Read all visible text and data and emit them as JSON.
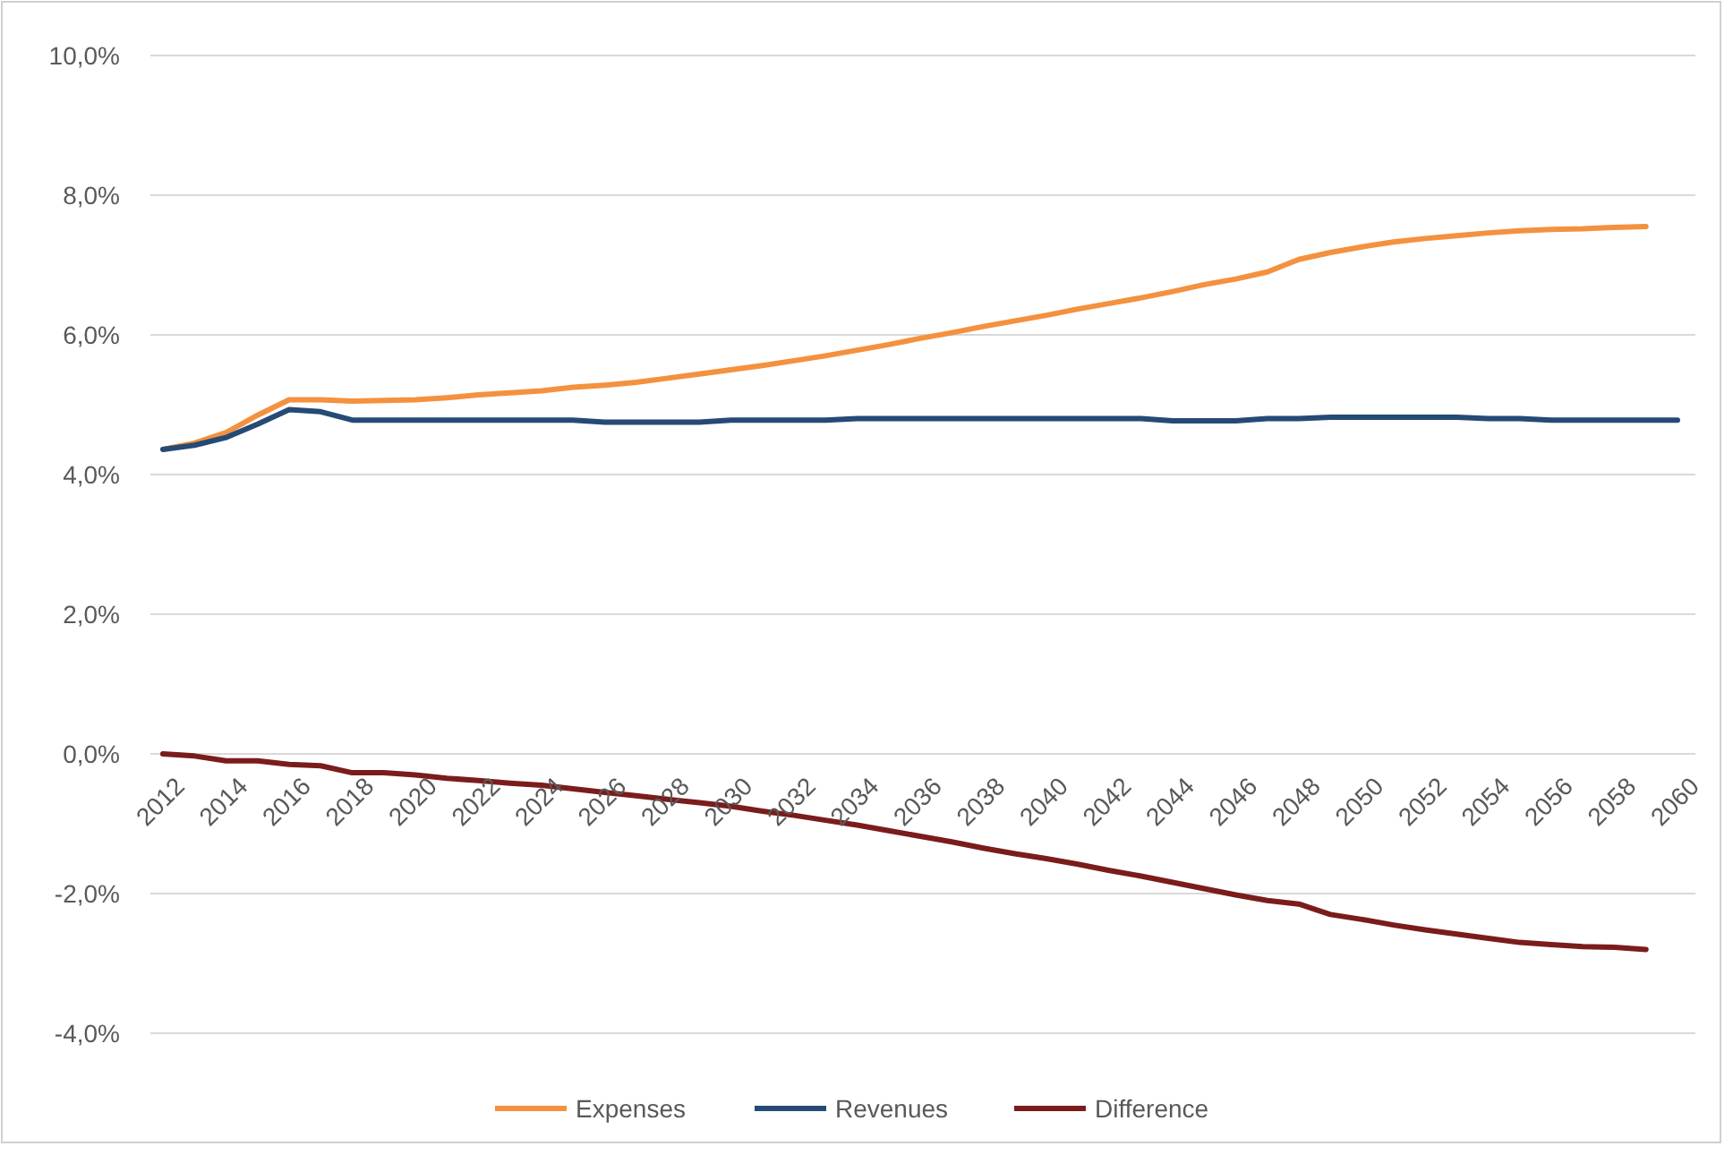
{
  "chart_data": {
    "type": "line",
    "categories": [
      "2012",
      null,
      "2014",
      null,
      "2016",
      null,
      "2018",
      null,
      "2020",
      null,
      "2022",
      null,
      "2024",
      null,
      "2026",
      null,
      "2028",
      null,
      "2030",
      null,
      "2032",
      null,
      "2034",
      null,
      "2036",
      null,
      "2038",
      null,
      "2040",
      null,
      "2042",
      null,
      "2044",
      null,
      "2046",
      null,
      "2048",
      null,
      "2050",
      null,
      "2052",
      null,
      "2054",
      null,
      "2056",
      null,
      "2058",
      null,
      "2060"
    ],
    "series": [
      {
        "name": "Expenses",
        "color": "#f4913e",
        "values": [
          4.36,
          4.45,
          4.6,
          4.85,
          5.07,
          5.07,
          5.05,
          5.06,
          5.07,
          5.1,
          5.14,
          5.17,
          5.2,
          5.25,
          5.28,
          5.32,
          5.38,
          5.44,
          5.5,
          5.56,
          5.63,
          5.7,
          5.78,
          5.86,
          5.95,
          6.03,
          6.12,
          6.2,
          6.28,
          6.37,
          6.45,
          6.53,
          6.62,
          6.72,
          6.8,
          6.9,
          7.08,
          7.18,
          7.26,
          7.33,
          7.38,
          7.42,
          7.46,
          7.49,
          7.51,
          7.52,
          7.54,
          7.55,
          null
        ]
      },
      {
        "name": "Revenues",
        "color": "#254a75",
        "values": [
          4.36,
          4.42,
          4.53,
          4.72,
          4.93,
          4.9,
          4.78,
          4.78,
          4.78,
          4.78,
          4.78,
          4.78,
          4.78,
          4.78,
          4.75,
          4.75,
          4.75,
          4.75,
          4.78,
          4.78,
          4.78,
          4.78,
          4.8,
          4.8,
          4.8,
          4.8,
          4.8,
          4.8,
          4.8,
          4.8,
          4.8,
          4.8,
          4.77,
          4.77,
          4.77,
          4.8,
          4.8,
          4.82,
          4.82,
          4.82,
          4.82,
          4.82,
          4.8,
          4.8,
          4.78,
          4.78,
          4.78,
          4.78,
          4.78
        ]
      },
      {
        "name": "Difference",
        "color": "#7b1c1c",
        "values": [
          0.0,
          -0.03,
          -0.1,
          -0.1,
          -0.15,
          -0.17,
          -0.27,
          -0.27,
          -0.3,
          -0.35,
          -0.38,
          -0.42,
          -0.45,
          -0.5,
          -0.55,
          -0.6,
          -0.65,
          -0.7,
          -0.75,
          -0.82,
          -0.88,
          -0.95,
          -1.02,
          -1.1,
          -1.18,
          -1.26,
          -1.35,
          -1.43,
          -1.5,
          -1.58,
          -1.67,
          -1.75,
          -1.84,
          -1.93,
          -2.02,
          -2.1,
          -2.15,
          -2.3,
          -2.37,
          -2.45,
          -2.52,
          -2.58,
          -2.64,
          -2.7,
          -2.73,
          -2.76,
          -2.77,
          -2.8,
          null
        ]
      }
    ],
    "ylim": [
      -4,
      10
    ],
    "yticks": [
      {
        "value": -4,
        "label": "-4,0%"
      },
      {
        "value": -2,
        "label": "-2,0%"
      },
      {
        "value": 0,
        "label": "0,0%"
      },
      {
        "value": 2,
        "label": "2,0%"
      },
      {
        "value": 4,
        "label": "4,0%"
      },
      {
        "value": 6,
        "label": "6,0%"
      },
      {
        "value": 8,
        "label": "8,0%"
      },
      {
        "value": 10,
        "label": "10,0%"
      }
    ],
    "grid": "y",
    "legend": "bottom",
    "line_style": "solid"
  }
}
